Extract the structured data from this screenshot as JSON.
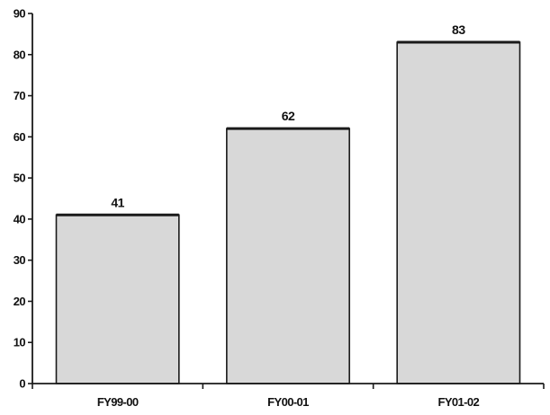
{
  "chart_data": {
    "type": "bar",
    "categories": [
      "FY99-00",
      "FY00-01",
      "FY01-02"
    ],
    "values": [
      41,
      62,
      83
    ],
    "data_labels": [
      "41",
      "62",
      "83"
    ],
    "ylim": [
      0,
      90
    ],
    "y_ticks": [
      0,
      10,
      20,
      30,
      40,
      50,
      60,
      70,
      80,
      90
    ],
    "title": "",
    "xlabel": "",
    "ylabel": "",
    "grid": false,
    "legend": "none",
    "colors": {
      "bar_fill": "#d8d8d8",
      "bar_stroke": "#1a1a1a",
      "axis": "#1a1a1a"
    }
  }
}
